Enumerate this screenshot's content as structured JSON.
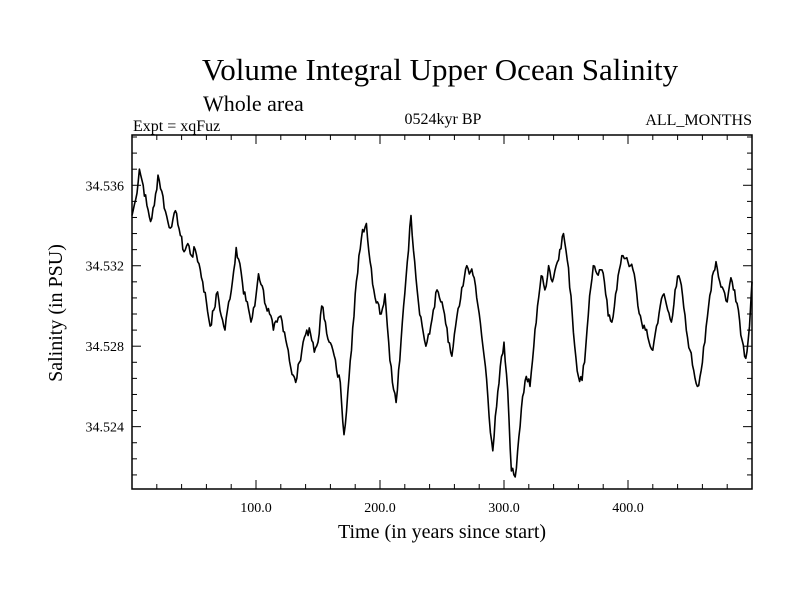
{
  "chart_data": {
    "type": "line",
    "title": "Volume Integral Upper Ocean Salinity",
    "subtitle": "Whole area",
    "annotations": {
      "left": "Expt = xqFuz",
      "center": "0524kyr BP",
      "right": "ALL_MONTHS"
    },
    "xlabel": "Time (in years since start)",
    "ylabel": "Salinity (in PSU)",
    "xlim": [
      0,
      500
    ],
    "ylim": [
      34.5209,
      34.5385
    ],
    "x_ticks": [
      100,
      200,
      300,
      400
    ],
    "x_tick_labels": [
      "100.0",
      "200.0",
      "300.0",
      "400.0"
    ],
    "x_minor_step": 20,
    "y_ticks": [
      34.524,
      34.528,
      34.532,
      34.536
    ],
    "y_tick_labels": [
      "34.524",
      "34.528",
      "34.532",
      "34.536"
    ],
    "y_minor_step": 0.0008,
    "grid": false,
    "series": [
      {
        "name": "salinity",
        "color": "#000000",
        "points": [
          [
            0,
            34.5345
          ],
          [
            3,
            34.5353
          ],
          [
            6,
            34.5368
          ],
          [
            9,
            34.536
          ],
          [
            12,
            34.535
          ],
          [
            15,
            34.5342
          ],
          [
            18,
            34.535
          ],
          [
            21,
            34.5365
          ],
          [
            24,
            34.5357
          ],
          [
            27,
            34.5347
          ],
          [
            30,
            34.5339
          ],
          [
            33,
            34.5343
          ],
          [
            36,
            34.5346
          ],
          [
            39,
            34.5335
          ],
          [
            42,
            34.5327
          ],
          [
            45,
            34.5331
          ],
          [
            48,
            34.5325
          ],
          [
            51,
            34.5328
          ],
          [
            54,
            34.5321
          ],
          [
            57,
            34.5312
          ],
          [
            60,
            34.5302
          ],
          [
            63,
            34.529
          ],
          [
            66,
            34.5298
          ],
          [
            69,
            34.5307
          ],
          [
            72,
            34.5295
          ],
          [
            75,
            34.5288
          ],
          [
            78,
            34.5302
          ],
          [
            81,
            34.5312
          ],
          [
            84,
            34.5329
          ],
          [
            87,
            34.5321
          ],
          [
            90,
            34.5306
          ],
          [
            93,
            34.5302
          ],
          [
            96,
            34.5292
          ],
          [
            99,
            34.53
          ],
          [
            102,
            34.5316
          ],
          [
            105,
            34.531
          ],
          [
            108,
            34.53
          ],
          [
            111,
            34.5296
          ],
          [
            114,
            34.5288
          ],
          [
            117,
            34.5292
          ],
          [
            120,
            34.5295
          ],
          [
            123,
            34.5287
          ],
          [
            126,
            34.5278
          ],
          [
            129,
            34.5266
          ],
          [
            132,
            34.5262
          ],
          [
            135,
            34.5272
          ],
          [
            138,
            34.5282
          ],
          [
            141,
            34.5288
          ],
          [
            144,
            34.5286
          ],
          [
            147,
            34.5277
          ],
          [
            150,
            34.5282
          ],
          [
            153,
            34.53
          ],
          [
            156,
            34.5292
          ],
          [
            159,
            34.5282
          ],
          [
            162,
            34.5278
          ],
          [
            165,
            34.5268
          ],
          [
            168,
            34.5262
          ],
          [
            171,
            34.5236
          ],
          [
            174,
            34.5257
          ],
          [
            177,
            34.5278
          ],
          [
            180,
            34.5306
          ],
          [
            183,
            34.5325
          ],
          [
            186,
            34.5338
          ],
          [
            189,
            34.5341
          ],
          [
            192,
            34.5322
          ],
          [
            195,
            34.5308
          ],
          [
            198,
            34.5302
          ],
          [
            201,
            34.5296
          ],
          [
            204,
            34.5306
          ],
          [
            207,
            34.5282
          ],
          [
            210,
            34.5262
          ],
          [
            213,
            34.5252
          ],
          [
            216,
            34.5273
          ],
          [
            219,
            34.53
          ],
          [
            222,
            34.5322
          ],
          [
            225,
            34.5345
          ],
          [
            228,
            34.5322
          ],
          [
            231,
            34.5302
          ],
          [
            234,
            34.529
          ],
          [
            237,
            34.528
          ],
          [
            240,
            34.5286
          ],
          [
            243,
            34.5298
          ],
          [
            246,
            34.5308
          ],
          [
            249,
            34.5302
          ],
          [
            252,
            34.5296
          ],
          [
            255,
            34.5282
          ],
          [
            258,
            34.5275
          ],
          [
            261,
            34.529
          ],
          [
            264,
            34.53
          ],
          [
            267,
            34.531
          ],
          [
            270,
            34.532
          ],
          [
            273,
            34.5317
          ],
          [
            276,
            34.5314
          ],
          [
            279,
            34.53
          ],
          [
            282,
            34.5285
          ],
          [
            285,
            34.527
          ],
          [
            288,
            34.5245
          ],
          [
            291,
            34.5228
          ],
          [
            294,
            34.525
          ],
          [
            297,
            34.527
          ],
          [
            300,
            34.5282
          ],
          [
            303,
            34.5258
          ],
          [
            306,
            34.5218
          ],
          [
            309,
            34.5215
          ],
          [
            312,
            34.5235
          ],
          [
            315,
            34.5255
          ],
          [
            318,
            34.5265
          ],
          [
            321,
            34.526
          ],
          [
            324,
            34.528
          ],
          [
            327,
            34.53
          ],
          [
            330,
            34.5315
          ],
          [
            333,
            34.5308
          ],
          [
            336,
            34.532
          ],
          [
            339,
            34.5312
          ],
          [
            342,
            34.532
          ],
          [
            345,
            34.5328
          ],
          [
            348,
            34.5336
          ],
          [
            351,
            34.5323
          ],
          [
            354,
            34.5305
          ],
          [
            357,
            34.528
          ],
          [
            360,
            34.5265
          ],
          [
            363,
            34.5263
          ],
          [
            366,
            34.528
          ],
          [
            369,
            34.5305
          ],
          [
            372,
            34.532
          ],
          [
            375,
            34.5316
          ],
          [
            378,
            34.5318
          ],
          [
            381,
            34.5312
          ],
          [
            384,
            34.5295
          ],
          [
            387,
            34.5292
          ],
          [
            390,
            34.5306
          ],
          [
            393,
            34.5318
          ],
          [
            396,
            34.5325
          ],
          [
            399,
            34.5324
          ],
          [
            402,
            34.532
          ],
          [
            405,
            34.5316
          ],
          [
            408,
            34.53
          ],
          [
            411,
            34.5292
          ],
          [
            414,
            34.5288
          ],
          [
            417,
            34.5282
          ],
          [
            420,
            34.5278
          ],
          [
            423,
            34.529
          ],
          [
            426,
            34.53
          ],
          [
            429,
            34.5306
          ],
          [
            432,
            34.5298
          ],
          [
            435,
            34.5292
          ],
          [
            438,
            34.5308
          ],
          [
            441,
            34.5315
          ],
          [
            444,
            34.5305
          ],
          [
            447,
            34.5288
          ],
          [
            450,
            34.5278
          ],
          [
            453,
            34.5268
          ],
          [
            456,
            34.526
          ],
          [
            459,
            34.5268
          ],
          [
            462,
            34.5282
          ],
          [
            465,
            34.53
          ],
          [
            468,
            34.5315
          ],
          [
            471,
            34.5322
          ],
          [
            474,
            34.5312
          ],
          [
            477,
            34.5308
          ],
          [
            480,
            34.5302
          ],
          [
            483,
            34.5314
          ],
          [
            486,
            34.5308
          ],
          [
            489,
            34.5298
          ],
          [
            492,
            34.5283
          ],
          [
            495,
            34.5274
          ],
          [
            498,
            34.529
          ],
          [
            500,
            34.5312
          ]
        ]
      }
    ]
  }
}
